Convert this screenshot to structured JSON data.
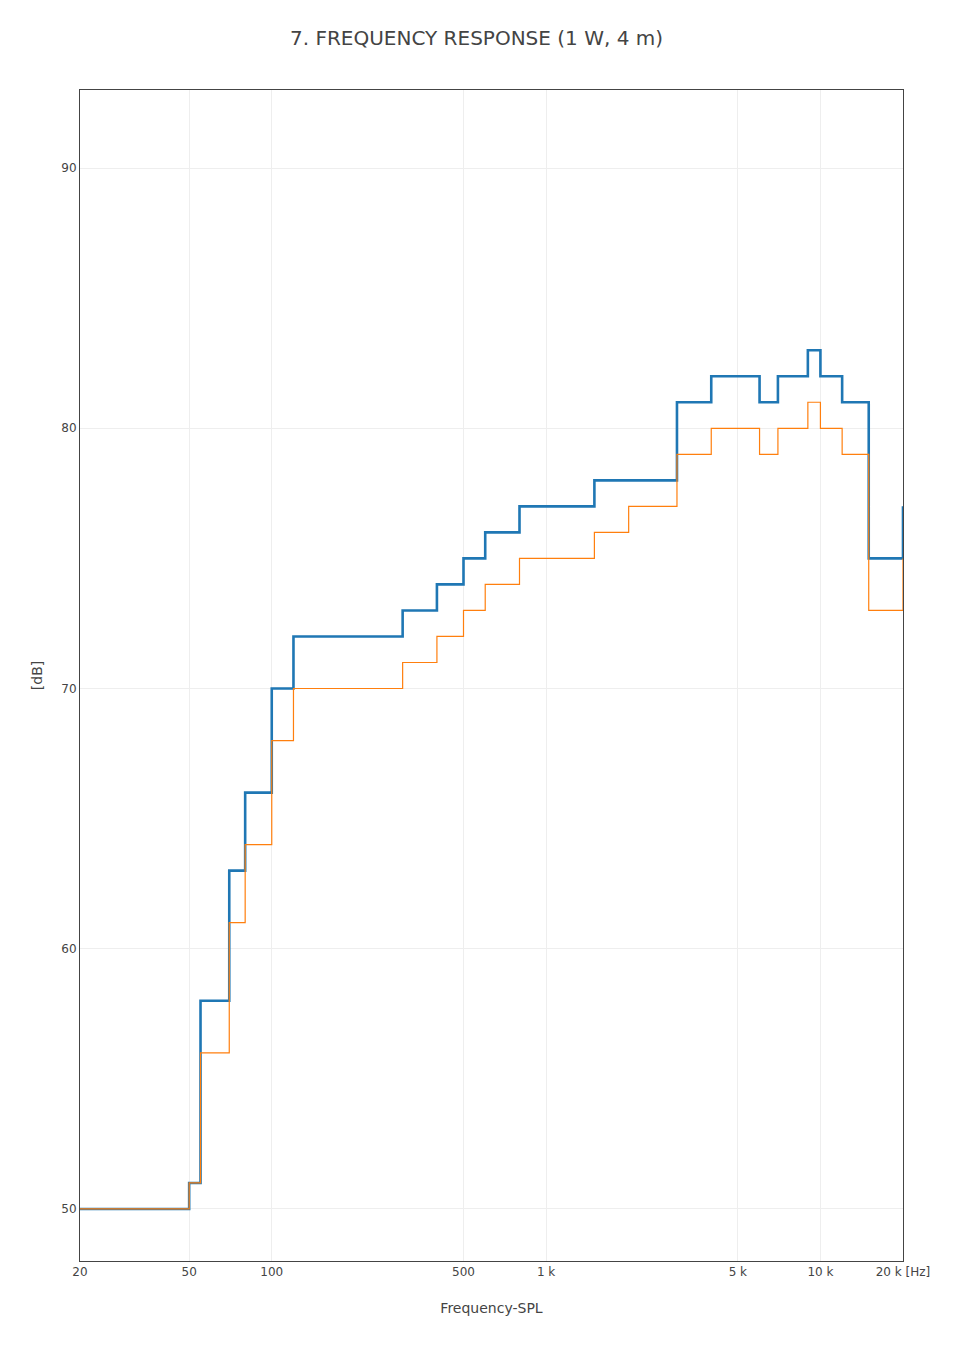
{
  "chart_data": {
    "type": "line",
    "title": "7. FREQUENCY RESPONSE (1 W, 4 m)",
    "x_label": "Frequency-SPL",
    "y_label": "[dB]",
    "log": "x",
    "grid": true,
    "x": [
      20,
      30,
      40,
      50,
      55,
      60,
      70,
      80,
      90,
      100,
      120,
      150,
      200,
      300,
      400,
      500,
      600,
      700,
      800,
      900,
      1000,
      1200,
      1500,
      2000,
      3000,
      4000,
      5000,
      6000,
      7000,
      8000,
      9000,
      10000,
      12000,
      15000,
      20000
    ],
    "series": [
      {
        "type": "step",
        "values": [
          50,
          50,
          50,
          51,
          58,
          58,
          63,
          66,
          66,
          70,
          72,
          72,
          72,
          73,
          74,
          75,
          76,
          76,
          77,
          77,
          77,
          77,
          78,
          78,
          81,
          82,
          82,
          81,
          82,
          82,
          83,
          82,
          81,
          75,
          77
        ]
      },
      {
        "type": "step",
        "values": [
          50,
          50,
          50,
          51,
          56,
          56,
          61,
          64,
          64,
          68,
          70,
          70,
          70,
          71,
          72,
          73,
          74,
          74,
          75,
          75,
          75,
          75,
          76,
          77,
          79,
          80,
          80,
          79,
          80,
          80,
          81,
          80,
          79,
          73,
          75
        ]
      }
    ],
    "xlim": [
      20,
      20000
    ],
    "xticks": [
      20,
      50,
      100,
      500,
      {
        "value": 1000,
        "label": "1 k"
      },
      {
        "value": 5000,
        "label": "5 k"
      },
      {
        "value": 10000,
        "label": "10 k"
      },
      {
        "value": 20000,
        "label": "20 k [Hz]"
      }
    ],
    "ylim": [
      48,
      93
    ],
    "yticks": [
      50,
      60,
      70,
      80,
      90
    ]
  }
}
